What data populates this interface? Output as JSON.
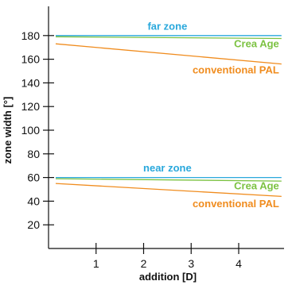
{
  "chart_data": {
    "type": "line",
    "xlabel": "addition [D]",
    "ylabel": "zone width [°]",
    "xlim": [
      0,
      5
    ],
    "ylim": [
      0,
      200
    ],
    "x_ticks": [
      1,
      2,
      3,
      4
    ],
    "y_ticks": [
      20,
      40,
      60,
      80,
      100,
      120,
      140,
      160,
      180
    ],
    "grid": false,
    "colors": {
      "blue": "#29a8dc",
      "green": "#7cc242",
      "orange": "#f08c1e",
      "axis": "#111111"
    },
    "series": [
      {
        "color": "blue",
        "x": [
          0.15,
          4.9
        ],
        "y": [
          180,
          180
        ]
      },
      {
        "color": "green",
        "x": [
          0.15,
          4.9
        ],
        "y": [
          179,
          177.5
        ]
      },
      {
        "color": "orange",
        "x": [
          0.15,
          4.9
        ],
        "y": [
          173,
          156
        ]
      },
      {
        "color": "blue",
        "x": [
          0.15,
          4.9
        ],
        "y": [
          60,
          60
        ]
      },
      {
        "color": "green",
        "x": [
          0.15,
          4.9
        ],
        "y": [
          59,
          57
        ]
      },
      {
        "color": "orange",
        "x": [
          0.15,
          4.9
        ],
        "y": [
          55,
          44
        ]
      }
    ],
    "annotations": [
      {
        "text": "far zone",
        "color": "blue",
        "x": 2.5,
        "y": 185,
        "anchor": "middle"
      },
      {
        "text": "Crea Age",
        "color": "green",
        "x": 4.85,
        "y": 170,
        "anchor": "end"
      },
      {
        "text": "conventional PAL",
        "color": "orange",
        "x": 4.85,
        "y": 148,
        "anchor": "end"
      },
      {
        "text": "near zone",
        "color": "blue",
        "x": 2.5,
        "y": 65,
        "anchor": "middle"
      },
      {
        "text": "Crea Age",
        "color": "green",
        "x": 4.85,
        "y": 50,
        "anchor": "end"
      },
      {
        "text": "conventional PAL",
        "color": "orange",
        "x": 4.85,
        "y": 35,
        "anchor": "end"
      }
    ]
  }
}
